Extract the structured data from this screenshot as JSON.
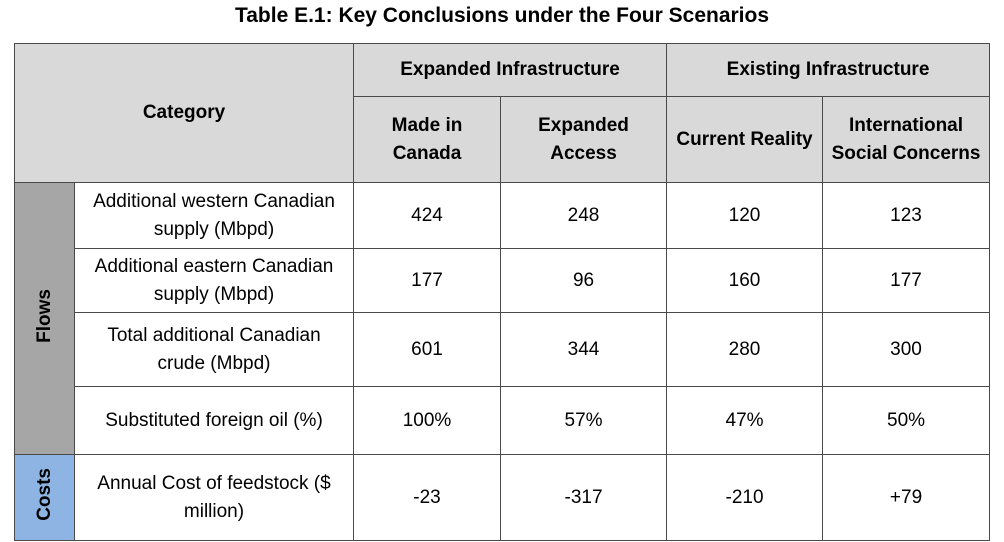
{
  "title": "Table E.1:  Key Conclusions under the Four Scenarios",
  "header": {
    "category": "Category",
    "group_expanded": "Expanded Infrastructure",
    "group_existing": "Existing Infrastructure",
    "columns": [
      "Made in Canada",
      "Expanded Access",
      "Current Reality",
      "International Social Concerns"
    ]
  },
  "groups": {
    "flows": "Flows",
    "costs": "Costs"
  },
  "rows": [
    {
      "label": "Additional western Canadian supply (Mbpd)",
      "values": [
        "424",
        "248",
        "120",
        "123"
      ]
    },
    {
      "label": "Additional eastern Canadian supply (Mbpd)",
      "values": [
        "177",
        "96",
        "160",
        "177"
      ]
    },
    {
      "label": "Total additional Canadian crude (Mbpd)",
      "values": [
        "601",
        "344",
        "280",
        "300"
      ]
    },
    {
      "label": "Substituted foreign oil (%)",
      "values": [
        "100%",
        "57%",
        "47%",
        "50%"
      ]
    },
    {
      "label": "Annual Cost of feedstock ($ million)",
      "values": [
        "-23",
        "-317",
        "-210",
        "+79"
      ]
    }
  ],
  "colors": {
    "header_bg": "#d9d9d9",
    "flows_bg": "#a6a6a6",
    "costs_bg": "#8eb4e3",
    "border": "#4a4a4a"
  }
}
